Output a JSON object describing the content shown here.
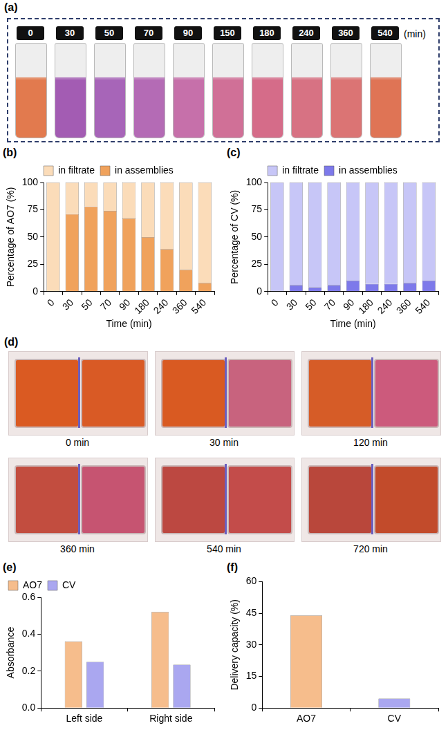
{
  "panels": {
    "a": {
      "panel": "(a)",
      "labels": [
        "0",
        "30",
        "50",
        "70",
        "90",
        "150",
        "180",
        "240",
        "360",
        "540"
      ],
      "unit": "(min)",
      "colors": [
        "#e27a4e",
        "#a35cb3",
        "#a765b8",
        "#b46bb5",
        "#c670aa",
        "#d07097",
        "#d56c89",
        "#d77283",
        "#db7474",
        "#df7455"
      ]
    },
    "d": {
      "panel": "(d)",
      "photos": [
        {
          "label": "0 min",
          "colors": [
            "#da5a22",
            "#d95a25"
          ]
        },
        {
          "label": "30 min",
          "colors": [
            "#d95a22",
            "#c8637e"
          ]
        },
        {
          "label": "120 min",
          "colors": [
            "#d65c27",
            "#cc5a7c"
          ]
        },
        {
          "label": "360 min",
          "colors": [
            "#c24d3f",
            "#c65471"
          ]
        },
        {
          "label": "540 min",
          "colors": [
            "#bc4841",
            "#c34c4a"
          ]
        },
        {
          "label": "720 min",
          "colors": [
            "#b9473b",
            "#c24b2b"
          ]
        }
      ]
    }
  },
  "chart_data": [
    {
      "panel": "(b)",
      "type": "bar",
      "stacked": true,
      "categories": [
        "0",
        "30",
        "50",
        "70",
        "90",
        "180",
        "240",
        "360",
        "540"
      ],
      "series": [
        {
          "name": "in filtrate",
          "color": "#fbdcb9",
          "values": [
            100,
            29,
            22,
            26,
            33,
            50,
            61,
            80,
            92
          ]
        },
        {
          "name": "in assemblies",
          "color": "#f0a25c",
          "values": [
            0,
            71,
            78,
            74,
            67,
            50,
            39,
            20,
            8
          ]
        }
      ],
      "x_label": "Time (min)",
      "y_label": "Percentage of AO7 (%)",
      "ylim": [
        0,
        100
      ],
      "yticks": [
        0,
        25,
        50,
        75,
        100
      ],
      "legend": "top",
      "grid": false
    },
    {
      "panel": "(c)",
      "type": "bar",
      "stacked": true,
      "categories": [
        "0",
        "30",
        "50",
        "70",
        "90",
        "180",
        "240",
        "360",
        "540"
      ],
      "series": [
        {
          "name": "in filtrate",
          "color": "#c7c6f7",
          "values": [
            100,
            94,
            96,
            94,
            90,
            93,
            93,
            92,
            90
          ]
        },
        {
          "name": "in assemblies",
          "color": "#7d79ea",
          "values": [
            0,
            6,
            4,
            6,
            10,
            7,
            7,
            8,
            10
          ]
        }
      ],
      "x_label": "Time (min)",
      "y_label": "Percentage of CV (%)",
      "ylim": [
        0,
        100
      ],
      "yticks": [
        0,
        25,
        50,
        75,
        100
      ],
      "legend": "top",
      "grid": false
    },
    {
      "panel": "(e)",
      "type": "bar",
      "categories": [
        "Left side",
        "Right side"
      ],
      "series": [
        {
          "name": "AO7",
          "color": "#f6bd8c",
          "values": [
            0.36,
            0.52
          ]
        },
        {
          "name": "CV",
          "color": "#aaa7f0",
          "values": [
            0.25,
            0.235
          ]
        }
      ],
      "y_label": "Absorbance",
      "ylim": [
        0,
        0.6
      ],
      "yticks": [
        {
          "value": 0,
          "label": "0.0"
        },
        0.2,
        0.4,
        0.6
      ],
      "legend": "top-left",
      "grid": false
    },
    {
      "panel": "(f)",
      "type": "bar",
      "categories": [
        "AO7",
        "CV"
      ],
      "values": [
        44,
        4.5
      ],
      "colors": [
        "#f6bd8c",
        "#aaa7f0"
      ],
      "y_label": "Delivery capacity (%)",
      "ylim": [
        0,
        60
      ],
      "yticks": [
        0,
        15,
        30,
        45,
        60
      ],
      "grid": false
    }
  ]
}
